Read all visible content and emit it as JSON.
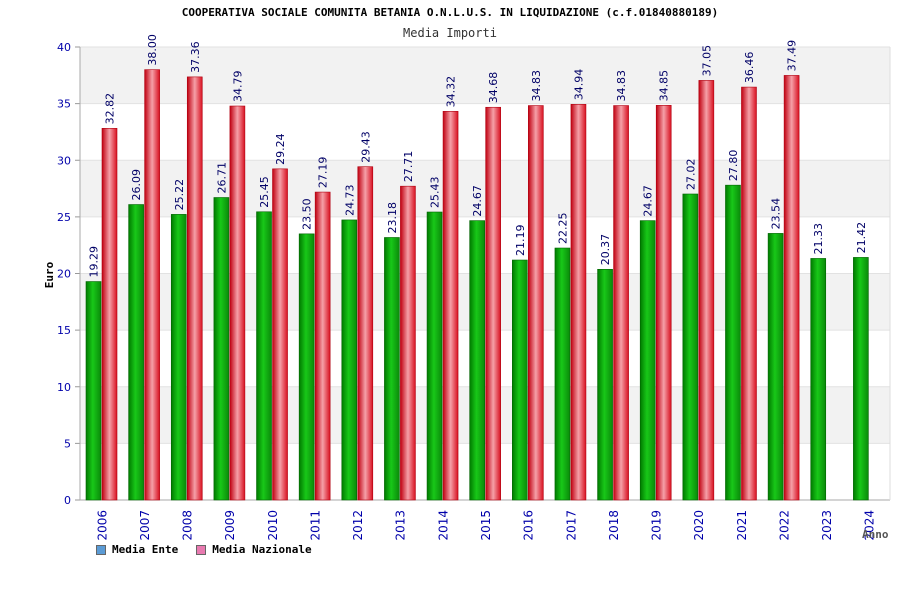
{
  "chart_data": {
    "type": "bar",
    "title": "COOPERATIVA SOCIALE COMUNITA BETANIA O.N.L.U.S. IN LIQUIDAZIONE (c.f.01840880189)",
    "subtitle": "Media Importi",
    "xlabel": "Anno",
    "ylabel": "Euro",
    "ylim": [
      0,
      40
    ],
    "yticks": [
      0,
      5,
      10,
      15,
      20,
      25,
      30,
      35,
      40
    ],
    "grid": true,
    "legend_position": "bottom-left",
    "categories": [
      "2006",
      "2007",
      "2008",
      "2009",
      "2010",
      "2011",
      "2012",
      "2013",
      "2014",
      "2015",
      "2016",
      "2017",
      "2018",
      "2019",
      "2020",
      "2021",
      "2022",
      "2023",
      "2024"
    ],
    "series": [
      {
        "name": "Media Ente",
        "color": "#10b810",
        "legend_color": "#5b9bd5",
        "values": [
          19.29,
          26.09,
          25.22,
          26.71,
          25.45,
          23.5,
          24.73,
          23.18,
          25.43,
          24.67,
          21.19,
          22.25,
          20.37,
          24.67,
          27.02,
          27.8,
          23.54,
          21.33,
          21.42
        ],
        "labels": [
          "19.29",
          "26.09",
          "25.22",
          "26.71",
          "25.45",
          "23.50",
          "24.73",
          "23.18",
          "25.43",
          "24.67",
          "21.19",
          "22.25",
          "20.37",
          "24.67",
          "27.02",
          "27.80",
          "23.54",
          "21.33",
          "21.42"
        ]
      },
      {
        "name": "Media Nazionale",
        "color": "#e8202a",
        "legend_color": "#e87ab0",
        "values": [
          32.82,
          38.0,
          37.36,
          34.79,
          29.24,
          27.19,
          29.43,
          27.71,
          34.32,
          34.68,
          34.83,
          34.94,
          34.83,
          34.85,
          37.05,
          36.46,
          37.49,
          null,
          null
        ],
        "labels": [
          "32.82",
          "38.00",
          "37.36",
          "34.79",
          "29.24",
          "27.19",
          "29.43",
          "27.71",
          "34.32",
          "34.68",
          "34.83",
          "34.94",
          "34.83",
          "34.85",
          "37.05",
          "36.46",
          "37.49",
          null,
          null
        ]
      }
    ]
  }
}
